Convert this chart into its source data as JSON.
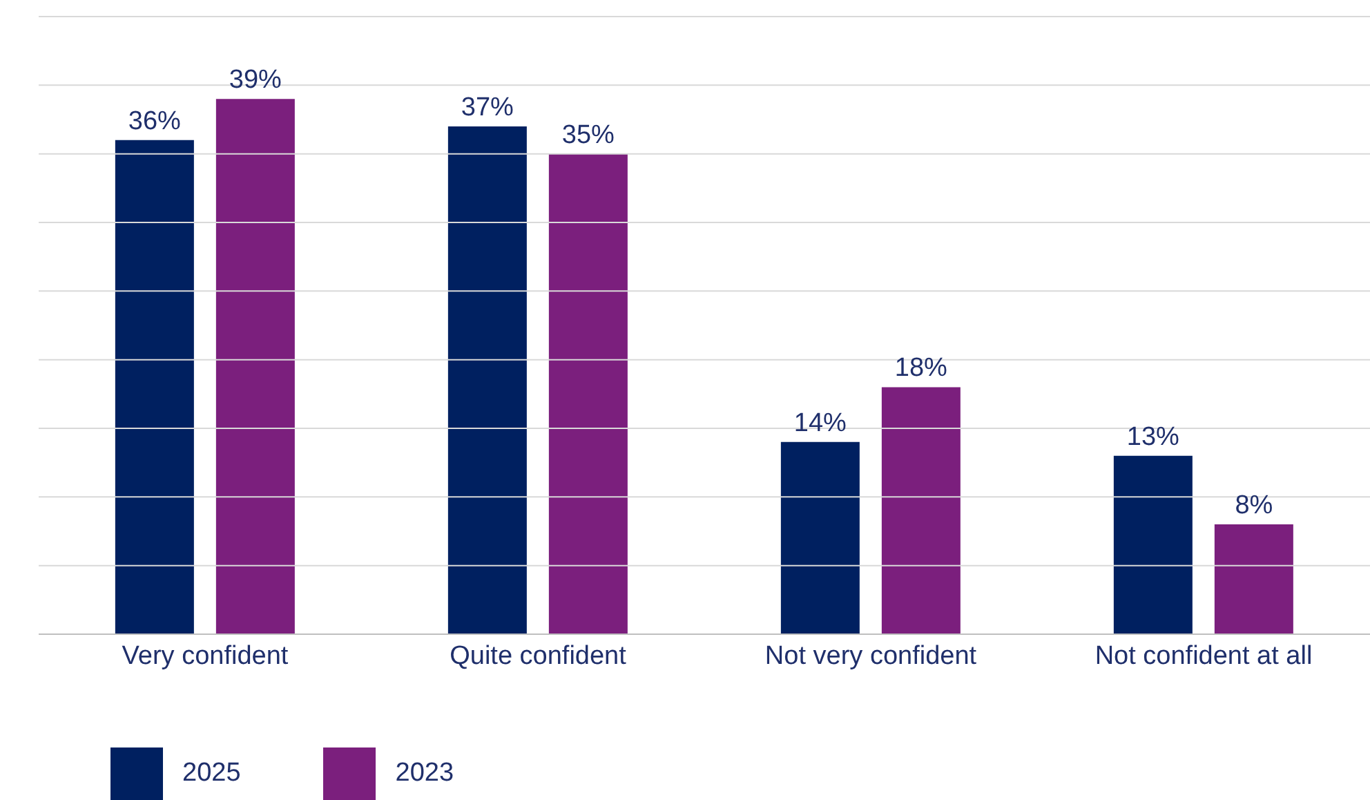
{
  "chart_data": {
    "type": "bar",
    "categories": [
      "Very confident",
      "Quite confident",
      "Not very confident",
      "Not confident at all"
    ],
    "series": [
      {
        "name": "2025",
        "color": "#002060",
        "values": [
          36,
          37,
          14,
          13
        ],
        "value_labels": [
          "36%",
          "37%",
          "14%",
          "13%"
        ]
      },
      {
        "name": "2023",
        "color": "#7b1f7d",
        "values": [
          39,
          35,
          18,
          8
        ],
        "value_labels": [
          "39%",
          "35%",
          "18%",
          "8%"
        ]
      }
    ],
    "ylim": [
      0,
      45
    ],
    "yticks": [
      {
        "value": 0,
        "label": null
      },
      {
        "value": 5,
        "label": null
      },
      {
        "value": 10,
        "label": null
      },
      {
        "value": 15,
        "label": null
      },
      {
        "value": 20,
        "label": null
      },
      {
        "value": 25,
        "label": null
      },
      {
        "value": 30,
        "label": null
      },
      {
        "value": 35,
        "label": null
      },
      {
        "value": 40,
        "label": null
      },
      {
        "value": 45,
        "label": null
      }
    ],
    "tick_labels": "x",
    "grid": "y",
    "legend": "bottom left"
  }
}
